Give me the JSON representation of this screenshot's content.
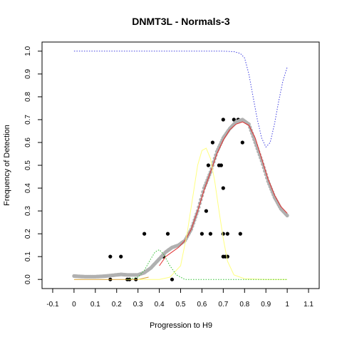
{
  "chart_data": {
    "type": "scatter",
    "title": "DNMT3L - Normals-3",
    "xlabel": "Progression to H9",
    "ylabel": "Frequency of Detection",
    "xlim": [
      -0.15,
      1.15
    ],
    "ylim": [
      -0.04,
      1.04
    ],
    "x_ticks": [
      "-0.1",
      "0",
      "0.1",
      "0.2",
      "0.3",
      "0.4",
      "0.5",
      "0.6",
      "0.7",
      "0.8",
      "0.9",
      "1",
      "1.1"
    ],
    "x_tick_values": [
      -0.1,
      0,
      0.1,
      0.2,
      0.3,
      0.4,
      0.5,
      0.6,
      0.7,
      0.8,
      0.9,
      1.0,
      1.1
    ],
    "y_ticks": [
      "0.0",
      "0.1",
      "0.2",
      "0.3",
      "0.4",
      "0.5",
      "0.6",
      "0.7",
      "0.8",
      "0.9",
      "1.0"
    ],
    "y_tick_values": [
      0.0,
      0.1,
      0.2,
      0.3,
      0.4,
      0.5,
      0.6,
      0.7,
      0.8,
      0.9,
      1.0
    ],
    "grid": false,
    "legend": "none",
    "series": [
      {
        "kind": "points",
        "color": "#000000",
        "points": [
          [
            0.17,
            0.1
          ],
          [
            0.22,
            0.1
          ],
          [
            0.17,
            0.0
          ],
          [
            0.25,
            0.0
          ],
          [
            0.26,
            0.0
          ],
          [
            0.29,
            0.0
          ],
          [
            0.33,
            0.2
          ],
          [
            0.44,
            0.2
          ],
          [
            0.42,
            0.1
          ],
          [
            0.46,
            0.0
          ],
          [
            0.6,
            0.2
          ],
          [
            0.63,
            0.5
          ],
          [
            0.62,
            0.3
          ],
          [
            0.64,
            0.2
          ],
          [
            0.65,
            0.6
          ],
          [
            0.68,
            0.5
          ],
          [
            0.69,
            0.5
          ],
          [
            0.7,
            0.7
          ],
          [
            0.7,
            0.4
          ],
          [
            0.7,
            0.2
          ],
          [
            0.72,
            0.2
          ],
          [
            0.7,
            0.1
          ],
          [
            0.71,
            0.1
          ],
          [
            0.72,
            0.1
          ],
          [
            0.75,
            0.7
          ],
          [
            0.77,
            0.7
          ],
          [
            0.78,
            0.2
          ],
          [
            0.79,
            0.6
          ]
        ]
      },
      {
        "kind": "smooth-points",
        "color": "#b0b0b0",
        "curve": [
          [
            0.0,
            0.015
          ],
          [
            0.05,
            0.012
          ],
          [
            0.1,
            0.012
          ],
          [
            0.15,
            0.015
          ],
          [
            0.2,
            0.02
          ],
          [
            0.22,
            0.022
          ],
          [
            0.25,
            0.02
          ],
          [
            0.3,
            0.02
          ],
          [
            0.33,
            0.03
          ],
          [
            0.36,
            0.05
          ],
          [
            0.4,
            0.09
          ],
          [
            0.43,
            0.12
          ],
          [
            0.46,
            0.14
          ],
          [
            0.49,
            0.15
          ],
          [
            0.52,
            0.17
          ],
          [
            0.55,
            0.22
          ],
          [
            0.58,
            0.3
          ],
          [
            0.61,
            0.4
          ],
          [
            0.64,
            0.47
          ],
          [
            0.67,
            0.56
          ],
          [
            0.7,
            0.62
          ],
          [
            0.73,
            0.66
          ],
          [
            0.76,
            0.69
          ],
          [
            0.79,
            0.7
          ],
          [
            0.82,
            0.68
          ],
          [
            0.85,
            0.6
          ],
          [
            0.88,
            0.52
          ],
          [
            0.91,
            0.43
          ],
          [
            0.94,
            0.36
          ],
          [
            0.97,
            0.31
          ],
          [
            1.0,
            0.28
          ]
        ]
      },
      {
        "kind": "line",
        "color": "#e03030",
        "curve": [
          [
            0.4,
            0.06
          ],
          [
            0.43,
            0.1
          ],
          [
            0.46,
            0.12
          ],
          [
            0.49,
            0.14
          ],
          [
            0.52,
            0.17
          ],
          [
            0.55,
            0.22
          ],
          [
            0.58,
            0.3
          ],
          [
            0.61,
            0.39
          ],
          [
            0.64,
            0.47
          ],
          [
            0.67,
            0.55
          ],
          [
            0.7,
            0.61
          ],
          [
            0.73,
            0.655
          ],
          [
            0.76,
            0.68
          ],
          [
            0.79,
            0.69
          ],
          [
            0.82,
            0.675
          ],
          [
            0.85,
            0.62
          ],
          [
            0.88,
            0.53
          ],
          [
            0.91,
            0.44
          ],
          [
            0.94,
            0.37
          ],
          [
            0.97,
            0.32
          ],
          [
            1.0,
            0.29
          ]
        ]
      },
      {
        "kind": "line",
        "color": "#d8a030",
        "curve": [
          [
            0.0,
            0.0
          ],
          [
            0.1,
            0.0
          ],
          [
            0.2,
            0.0
          ],
          [
            0.3,
            0.0
          ],
          [
            0.35,
            0.01
          ]
        ]
      },
      {
        "kind": "line",
        "color": "#ffff80",
        "curve": [
          [
            0.3,
            0.0
          ],
          [
            0.4,
            0.0
          ],
          [
            0.45,
            0.01
          ],
          [
            0.5,
            0.06
          ],
          [
            0.53,
            0.2
          ],
          [
            0.56,
            0.38
          ],
          [
            0.58,
            0.5
          ],
          [
            0.6,
            0.565
          ],
          [
            0.62,
            0.575
          ],
          [
            0.64,
            0.53
          ],
          [
            0.66,
            0.43
          ],
          [
            0.68,
            0.3
          ],
          [
            0.7,
            0.18
          ],
          [
            0.72,
            0.08
          ],
          [
            0.75,
            0.02
          ],
          [
            0.8,
            0.003
          ],
          [
            0.9,
            0.0
          ],
          [
            1.0,
            0.0
          ]
        ]
      },
      {
        "kind": "dotted-line",
        "color": "#30c030",
        "curve": [
          [
            0.25,
            0.0
          ],
          [
            0.3,
            0.01
          ],
          [
            0.33,
            0.04
          ],
          [
            0.36,
            0.09
          ],
          [
            0.38,
            0.12
          ],
          [
            0.4,
            0.13
          ],
          [
            0.42,
            0.11
          ],
          [
            0.45,
            0.06
          ],
          [
            0.48,
            0.02
          ],
          [
            0.52,
            0.0
          ],
          [
            0.6,
            0.0
          ],
          [
            0.7,
            0.0
          ],
          [
            0.8,
            0.0
          ],
          [
            0.9,
            0.0
          ],
          [
            1.0,
            0.0
          ]
        ]
      },
      {
        "kind": "dotted-line",
        "color": "#4040e0",
        "curve": [
          [
            0.0,
            1.0
          ],
          [
            0.2,
            1.0
          ],
          [
            0.4,
            1.0
          ],
          [
            0.6,
            1.0
          ],
          [
            0.7,
            1.0
          ],
          [
            0.75,
            0.998
          ],
          [
            0.78,
            0.99
          ],
          [
            0.8,
            0.97
          ],
          [
            0.82,
            0.9
          ],
          [
            0.84,
            0.8
          ],
          [
            0.86,
            0.7
          ],
          [
            0.88,
            0.62
          ],
          [
            0.9,
            0.58
          ],
          [
            0.92,
            0.6
          ],
          [
            0.94,
            0.68
          ],
          [
            0.96,
            0.78
          ],
          [
            0.98,
            0.87
          ],
          [
            1.0,
            0.93
          ]
        ]
      }
    ]
  }
}
